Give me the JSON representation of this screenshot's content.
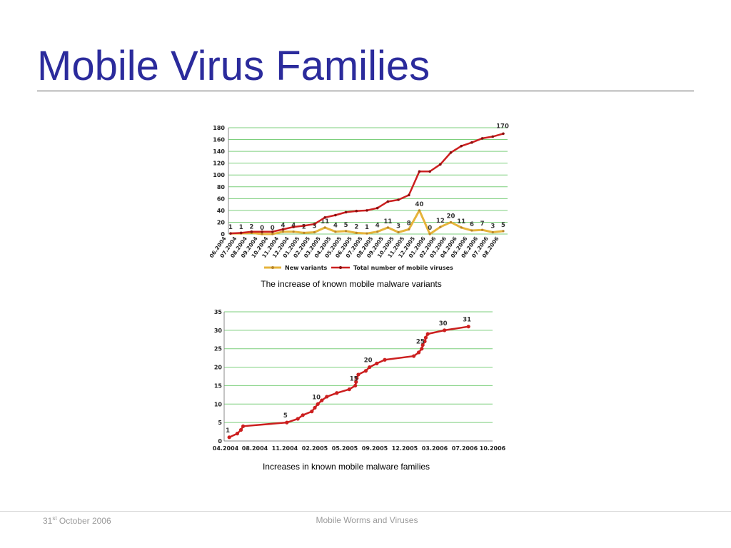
{
  "slide": {
    "title": "Mobile Virus Families",
    "footer": {
      "date_day": "31",
      "date_suffix": "st",
      "date_rest": " October 2006",
      "topic": "Mobile Worms and Viruses"
    }
  },
  "colors": {
    "title": "#2b2b9c",
    "grid": "#7dcf7d",
    "total_line": "#cc1f1f",
    "new_variants_line": "#e6b43c"
  },
  "chart_data": [
    {
      "type": "line",
      "caption": "The increase of known mobile malware variants",
      "categories": [
        "06.2004",
        "07.2004",
        "08.2004",
        "09.2004",
        "10.2004",
        "11.2004",
        "12.2004",
        "01.2005",
        "02.2005",
        "03.2005",
        "04.2005",
        "05.2005",
        "06.2005",
        "07.2005",
        "08.2005",
        "09.2005",
        "10.2005",
        "11.2005",
        "12.2005",
        "01.2006",
        "02.2006",
        "03.2006",
        "04.2006",
        "05.2006",
        "06.2006",
        "07.2006",
        "08.2006"
      ],
      "ylim": [
        0,
        180
      ],
      "yticks": [
        0,
        20,
        40,
        60,
        80,
        100,
        120,
        140,
        160,
        180
      ],
      "grid": true,
      "legend_position": "bottom",
      "series": [
        {
          "name": "New variants",
          "color": "#e6b43c",
          "values": [
            1,
            1,
            2,
            0,
            0,
            4,
            4,
            2,
            3,
            11,
            4,
            5,
            2,
            1,
            4,
            11,
            3,
            8,
            40,
            0,
            12,
            20,
            11,
            6,
            7,
            3,
            5
          ],
          "value_labels": [
            "1",
            "1",
            "2",
            "0",
            "0",
            "4",
            "4",
            "2",
            "3",
            "11",
            "4",
            "5",
            "2",
            "1",
            "4",
            "11",
            "3",
            "8",
            "40",
            "0",
            "12",
            "20",
            "11",
            "6",
            "7",
            "3",
            "5"
          ]
        },
        {
          "name": "Total number of mobile viruses",
          "color": "#cc1f1f",
          "values": [
            1,
            2,
            4,
            4,
            4,
            8,
            12,
            14,
            17,
            28,
            32,
            37,
            39,
            40,
            44,
            55,
            58,
            66,
            106,
            106,
            118,
            138,
            149,
            155,
            162,
            165,
            170
          ],
          "end_label": "170"
        }
      ]
    },
    {
      "type": "line",
      "caption": "Increases in known mobile malware families",
      "x_ticks": [
        "04.2004",
        "08.2004",
        "11.2004",
        "02.2005",
        "05.2005",
        "09.2005",
        "12.2005",
        "03.2006",
        "07.2006",
        "10.2006"
      ],
      "ylim": [
        0,
        35
      ],
      "yticks": [
        0,
        5,
        10,
        15,
        20,
        25,
        30,
        35
      ],
      "grid": true,
      "series": [
        {
          "name": "",
          "color": "#cc1f1f",
          "points": [
            {
              "x": 4.5,
              "y": 1
            },
            {
              "x": 5.6,
              "y": 2
            },
            {
              "x": 6.1,
              "y": 3
            },
            {
              "x": 6.4,
              "y": 4
            },
            {
              "x": 11.2,
              "y": 5
            },
            {
              "x": 12.3,
              "y": 6
            },
            {
              "x": 12.8,
              "y": 7
            },
            {
              "x": 13.7,
              "y": 8
            },
            {
              "x": 14.0,
              "y": 9
            },
            {
              "x": 14.3,
              "y": 10
            },
            {
              "x": 14.7,
              "y": 11
            },
            {
              "x": 15.2,
              "y": 12
            },
            {
              "x": 16.2,
              "y": 13
            },
            {
              "x": 17.6,
              "y": 14
            },
            {
              "x": 18.4,
              "y": 15
            },
            {
              "x": 18.5,
              "y": 16
            },
            {
              "x": 18.6,
              "y": 17
            },
            {
              "x": 18.8,
              "y": 18
            },
            {
              "x": 19.8,
              "y": 19
            },
            {
              "x": 20.3,
              "y": 20
            },
            {
              "x": 21.2,
              "y": 21
            },
            {
              "x": 22.0,
              "y": 22
            },
            {
              "x": 24.9,
              "y": 23
            },
            {
              "x": 25.4,
              "y": 24
            },
            {
              "x": 25.7,
              "y": 25
            },
            {
              "x": 25.8,
              "y": 26
            },
            {
              "x": 26.0,
              "y": 27
            },
            {
              "x": 26.1,
              "y": 28
            },
            {
              "x": 26.3,
              "y": 29
            },
            {
              "x": 28.3,
              "y": 30
            },
            {
              "x": 31.4,
              "y": 31
            }
          ],
          "point_labels": [
            {
              "index": 0,
              "text": "1"
            },
            {
              "index": 4,
              "text": "5"
            },
            {
              "index": 9,
              "text": "10"
            },
            {
              "index": 14,
              "text": "15"
            },
            {
              "index": 19,
              "text": "20"
            },
            {
              "index": 24,
              "text": "25"
            },
            {
              "index": 29,
              "text": "30"
            },
            {
              "index": 30,
              "text": "31"
            }
          ]
        }
      ]
    }
  ]
}
